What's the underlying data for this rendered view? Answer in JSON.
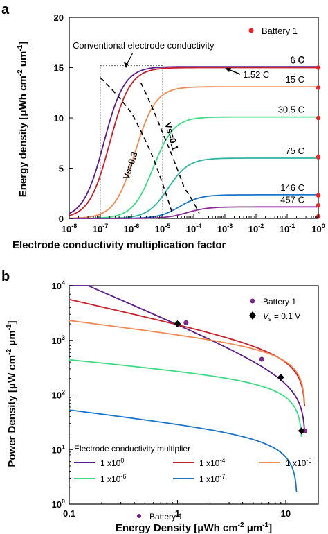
{
  "figure": {
    "panel_a_label": "a",
    "panel_b_label": "b"
  },
  "chart_data": [
    {
      "type": "line",
      "xscale": "log",
      "xlim": [
        1e-08,
        1
      ],
      "ylim": [
        0,
        20
      ],
      "xlabel": "Electrode conductivity multiplication factor",
      "ylabel": "Energy density [μWh cm⁻² um⁻¹]",
      "ylabel_parts": {
        "main": "Energy density [",
        "mu": "μ",
        "unit": "Wh cm",
        "exp1": "-2",
        "mid": " um",
        "exp2": "-1",
        "end": "]"
      },
      "x_ticks": [
        {
          "base": "10",
          "exp": "-8",
          "value": 1e-08
        },
        {
          "base": "10",
          "exp": "-7",
          "value": 1e-07
        },
        {
          "base": "10",
          "exp": "-6",
          "value": 1e-06
        },
        {
          "base": "10",
          "exp": "-5",
          "value": 1e-05
        },
        {
          "base": "10",
          "exp": "-4",
          "value": 0.0001
        },
        {
          "base": "10",
          "exp": "-3",
          "value": 0.001
        },
        {
          "base": "10",
          "exp": "-2",
          "value": 0.01
        },
        {
          "base": "10",
          "exp": "-1",
          "value": 0.1
        },
        {
          "base": "10",
          "exp": "0",
          "value": 1
        }
      ],
      "y_ticks": [
        "0",
        "5",
        "10",
        "15",
        "20"
      ],
      "legend": {
        "label": "Battery 1",
        "color": "#e8262a",
        "placement": "top-right"
      },
      "annotations": {
        "conventional": "Conventional electrode conductivity",
        "vs03": "Vs=0.3",
        "vs01": "Vs=0.1",
        "rate_1_52": "1.52 C"
      },
      "series": [
        {
          "name": "1 C",
          "color": "#5b1a8a",
          "plateau": 15.1,
          "midpoint": 1.3e-07,
          "width": 0.33
        },
        {
          "name": "6 C",
          "color": "#c81e2a",
          "plateau": 15.0,
          "midpoint": 2e-07,
          "width": 0.33
        },
        {
          "name": "15 C",
          "color": "#ef8a52",
          "plateau": 13.1,
          "midpoint": 1.3e-06,
          "width": 0.33
        },
        {
          "name": "30.5 C",
          "color": "#3ddc84",
          "plateau": 10.1,
          "midpoint": 5e-06,
          "width": 0.33
        },
        {
          "name": "75 C",
          "color": "#30b4a0",
          "plateau": 6.0,
          "midpoint": 1.5e-05,
          "width": 0.33
        },
        {
          "name": "146 C",
          "color": "#1a74c8",
          "plateau": 2.35,
          "midpoint": 3.5e-05,
          "width": 0.33
        },
        {
          "name": "457 C",
          "color": "#8a2a98",
          "plateau": 1.15,
          "midpoint": 6e-05,
          "width": 0.33
        }
      ],
      "battery1_points": [
        {
          "x": 1,
          "y": 15.0
        },
        {
          "x": 1,
          "y": 13.0
        },
        {
          "x": 1,
          "y": 10.0
        },
        {
          "x": 1,
          "y": 6.1
        },
        {
          "x": 1,
          "y": 2.3
        },
        {
          "x": 1,
          "y": 1.3
        },
        {
          "x": 1,
          "y": 0.2
        }
      ],
      "conventional_box": {
        "x": [
          1e-07,
          1e-05
        ],
        "y": [
          0,
          15.2
        ]
      },
      "vs_lines": [
        {
          "name": "Vs=0.3",
          "points": [
            [
              1e-07,
              14.0
            ],
            [
              1e-06,
              10.5
            ],
            [
              5e-06,
              6.0
            ],
            [
              2e-05,
              0.6
            ]
          ]
        },
        {
          "name": "Vs=0.1",
          "points": [
            [
              2e-06,
              13.5
            ],
            [
              1e-05,
              8.5
            ],
            [
              5e-05,
              3.0
            ],
            [
              0.00015,
              0.5
            ]
          ]
        }
      ]
    },
    {
      "type": "line",
      "xscale": "log",
      "yscale": "log",
      "xlim": [
        0.1,
        20
      ],
      "ylim": [
        1,
        10000
      ],
      "xlabel": "Energy Density [μWh cm⁻² μm⁻¹]",
      "ylabel": "Power Density [μW cm⁻² μm⁻¹]",
      "xlabel_parts": {
        "main": "Energy Density [",
        "mu": "μ",
        "unit": "Wh cm",
        "exp1": "-2",
        "mid": " ",
        "mu2": "μ",
        "m": "m",
        "exp2": "-1",
        "end": "]"
      },
      "ylabel_parts": {
        "main": "Power Density [",
        "mu": "μ",
        "unit": "W cm",
        "exp1": "-2",
        "mid": " ",
        "mu2": "μ",
        "m": "m",
        "exp2": "-1",
        "end": "]"
      },
      "x_ticks": [
        "0.1",
        "1",
        "10"
      ],
      "y_ticks": [
        {
          "base": "10",
          "exp": "0",
          "value": 1
        },
        {
          "base": "10",
          "exp": "1",
          "value": 10
        },
        {
          "base": "10",
          "exp": "2",
          "value": 100
        },
        {
          "base": "10",
          "exp": "3",
          "value": 1000
        },
        {
          "base": "10",
          "exp": "4",
          "value": 10000
        }
      ],
      "legend_markers": [
        {
          "label": "Battery 1",
          "symbol": "circle",
          "color": "#7a2a8a"
        },
        {
          "label_v": "V",
          "label_s": "s",
          "label_rest": " = 0.1 V",
          "symbol": "diamond",
          "color": "#000000"
        }
      ],
      "legend_title": "Electrode conductivity multiplier",
      "series": [
        {
          "name": "1 x10",
          "exp": "0",
          "color": "#5b1a8a",
          "E_lim": 15.2,
          "P_ref": 2000,
          "slope": 0.85
        },
        {
          "name": "1 x10",
          "exp": "-4",
          "color": "#c81e2a",
          "E_lim": 15.2,
          "P_ref": 2000,
          "slope": 0.45
        },
        {
          "name": "1 x10",
          "exp": "-5",
          "color": "#ef8a52",
          "E_lim": 15.2,
          "P_ref": 1300,
          "slope": 0.25
        },
        {
          "name": "1 x10",
          "exp": "-6",
          "color": "#3ddc84",
          "E_lim": 14.2,
          "P_ref": 280,
          "slope": 0.2
        },
        {
          "name": "1 x10",
          "exp": "-7",
          "color": "#1a74c8",
          "E_lim": 12.8,
          "P_ref": 30,
          "slope": 0.25
        }
      ],
      "battery1_points": [
        [
          1.2,
          2100
        ],
        [
          6.0,
          450
        ],
        [
          15.0,
          22
        ]
      ],
      "vs_points": [
        [
          1.0,
          2000
        ],
        [
          9.0,
          210
        ],
        [
          14.0,
          22
        ]
      ],
      "bottom_label": "Battery 1"
    }
  ]
}
